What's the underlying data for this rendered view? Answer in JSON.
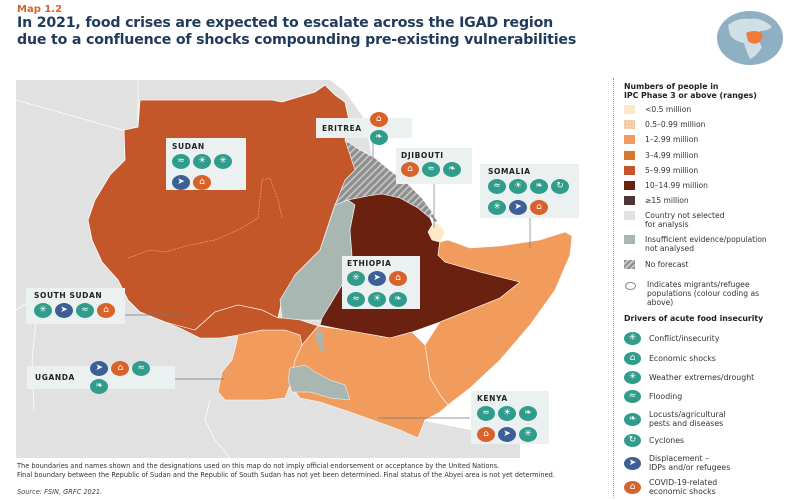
{
  "header": {
    "map_label": "Map 1.2",
    "title": "In 2021, food crises are expected to escalate across the IGAD region due to a confluence of shocks compounding pre-existing vulnerabilities"
  },
  "colors": {
    "lt_0_5": "#fbe9c8",
    "r_0_5_0_99": "#f8d0b0",
    "r_1_2_99": "#f19c5c",
    "r_3_4_99": "#d9782a",
    "r_5_9_99": "#c4572a",
    "r_10_14_99": "#6b2110",
    "ge_15": "#4e3636",
    "not_selected": "#e1e1e1",
    "insufficient": "#a9b7b3",
    "driver_teal": "#2f9c8c",
    "driver_blue": "#3b5f96",
    "driver_orange": "#d9622b",
    "title_blue": "#1f3a5a",
    "accent_orange": "#d9622b"
  },
  "icons": {
    "conflict": "✳",
    "economic": "⌂",
    "weather": "☀",
    "flooding": "≈",
    "locusts": "❧",
    "cyclones": "↻",
    "displacement": "➤",
    "covid": "⌂"
  },
  "countries": [
    {
      "id": "sudan",
      "name": "SUDAN",
      "phase_range": "5–9.99 million",
      "drivers": [
        "flooding",
        "weather",
        "conflict",
        "displacement",
        "covid"
      ]
    },
    {
      "id": "eritrea",
      "name": "ERITREA",
      "phase_range": "No forecast",
      "drivers": [
        "covid",
        "locusts"
      ]
    },
    {
      "id": "djibouti",
      "name": "DJIBOUTI",
      "phase_range": "<0.5 million",
      "drivers": [
        "covid",
        "flooding",
        "locusts"
      ]
    },
    {
      "id": "somalia",
      "name": "SOMALIA",
      "phase_range": "1–2.99 million",
      "drivers": [
        "flooding",
        "weather",
        "locusts",
        "cyclones",
        "conflict",
        "displacement",
        "covid"
      ]
    },
    {
      "id": "ethiopia",
      "name": "ETHIOPIA",
      "phase_range": "10–14.99 million",
      "drivers": [
        "conflict",
        "displacement",
        "covid",
        "flooding",
        "weather",
        "locusts"
      ]
    },
    {
      "id": "south_sudan",
      "name": "SOUTH SUDAN",
      "phase_range": "5–9.99 million",
      "drivers": [
        "conflict",
        "displacement",
        "flooding",
        "covid"
      ]
    },
    {
      "id": "uganda",
      "name": "UGANDA",
      "phase_range": "1–2.99 million",
      "drivers": [
        "displacement",
        "covid",
        "flooding",
        "locusts"
      ]
    },
    {
      "id": "kenya",
      "name": "KENYA",
      "phase_range": "1–2.99 million",
      "drivers": [
        "flooding",
        "weather",
        "locusts",
        "covid",
        "displacement",
        "conflict"
      ]
    }
  ],
  "legend": {
    "title": "Numbers of people in IPC Phase 3 or above (ranges)",
    "title_line1": "Numbers of people in",
    "title_line2": "IPC Phase 3 or above (ranges)",
    "ranges": [
      {
        "label": "<0.5 million",
        "color_key": "lt_0_5"
      },
      {
        "label": "0.5–0.99 million",
        "color_key": "r_0_5_0_99"
      },
      {
        "label": "1–2.99 million",
        "color_key": "r_1_2_99"
      },
      {
        "label": "3–4.99 million",
        "color_key": "r_3_4_99"
      },
      {
        "label": "5–9.99 million",
        "color_key": "r_5_9_99"
      },
      {
        "label": "10–14.99 million",
        "color_key": "r_10_14_99"
      },
      {
        "label": "≥15 million",
        "color_key": "ge_15"
      }
    ],
    "not_selected": "Country not selected for analysis",
    "not_selected_l1": "Country not selected",
    "not_selected_l2": "for analysis",
    "insufficient_l1": "Insufficient evidence/population",
    "insufficient_l2": "not analysed",
    "no_forecast": "No forecast",
    "migrants_l1": "Indicates migrants/refugee",
    "migrants_l2": "populations (colour coding as",
    "migrants_l3": "above)",
    "drivers_title": "Drivers of acute food insecurity",
    "drivers": [
      {
        "key": "conflict",
        "label": "Conflict/insecurity",
        "color": "teal"
      },
      {
        "key": "economic",
        "label": "Economic shocks",
        "color": "teal"
      },
      {
        "key": "weather",
        "label": "Weather extremes/drought",
        "color": "teal"
      },
      {
        "key": "flooding",
        "label": "Flooding",
        "color": "teal"
      },
      {
        "key": "locusts",
        "label_l1": "Locusts/agricultural",
        "label_l2": "pests and diseases",
        "color": "teal"
      },
      {
        "key": "cyclones",
        "label": "Cyclones",
        "color": "teal"
      },
      {
        "key": "displacement",
        "label_l1": "Displacement –",
        "label_l2": "IDPs and/or refugees",
        "color": "blue"
      },
      {
        "key": "covid",
        "label_l1": "COVID-19-related",
        "label_l2": "economic shocks",
        "color": "orange"
      }
    ]
  },
  "footer": {
    "disclaimer_l1": "The boundaries and names shown and the designations used on this map do not imply official endorsement or acceptance by the United Nations.",
    "disclaimer_l2": "Final boundary between the Republic of Sudan and the Republic of South Sudan has not yet been determined. Final status of the Abyei area is not yet determined.",
    "source": "Source: FSIN, GRFC 2021."
  }
}
